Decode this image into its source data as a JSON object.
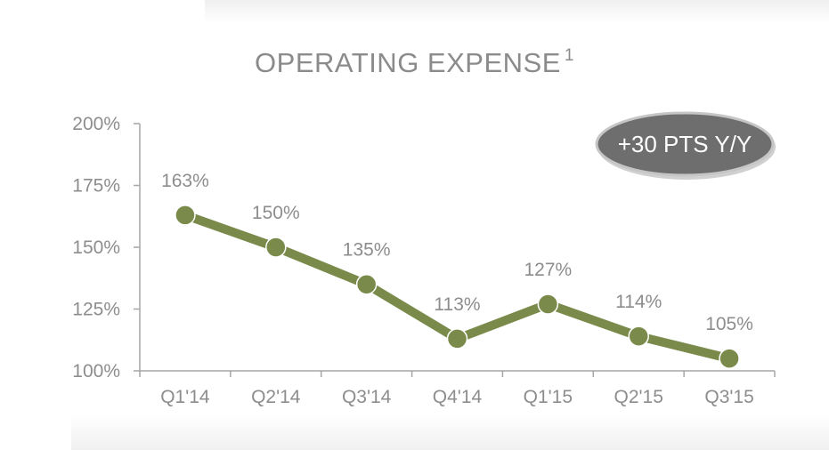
{
  "chart_data": {
    "type": "line",
    "title": "OPERATING EXPENSE",
    "title_superscript": "1",
    "categories": [
      "Q1'14",
      "Q2'14",
      "Q3'14",
      "Q4'14",
      "Q1'15",
      "Q2'15",
      "Q3'15"
    ],
    "series": [
      {
        "values": [
          163,
          150,
          135,
          113,
          127,
          114,
          105
        ],
        "data_labels": [
          "163%",
          "150%",
          "135%",
          "113%",
          "127%",
          "114%",
          "105%"
        ],
        "color": "#7a8a4a"
      }
    ],
    "y_ticks": [
      100,
      125,
      150,
      175,
      200
    ],
    "y_tick_labels": [
      "100%",
      "125%",
      "150%",
      "175%",
      "200%"
    ],
    "ylim": [
      100,
      200
    ],
    "grid": false,
    "legend": "none",
    "annotation": "+30 PTS Y/Y",
    "colors": {
      "line": "#7a8a4a",
      "text": "#8d8d8d",
      "axis": "#a6a6a6",
      "badge_fill": "#6e6e6e"
    }
  }
}
